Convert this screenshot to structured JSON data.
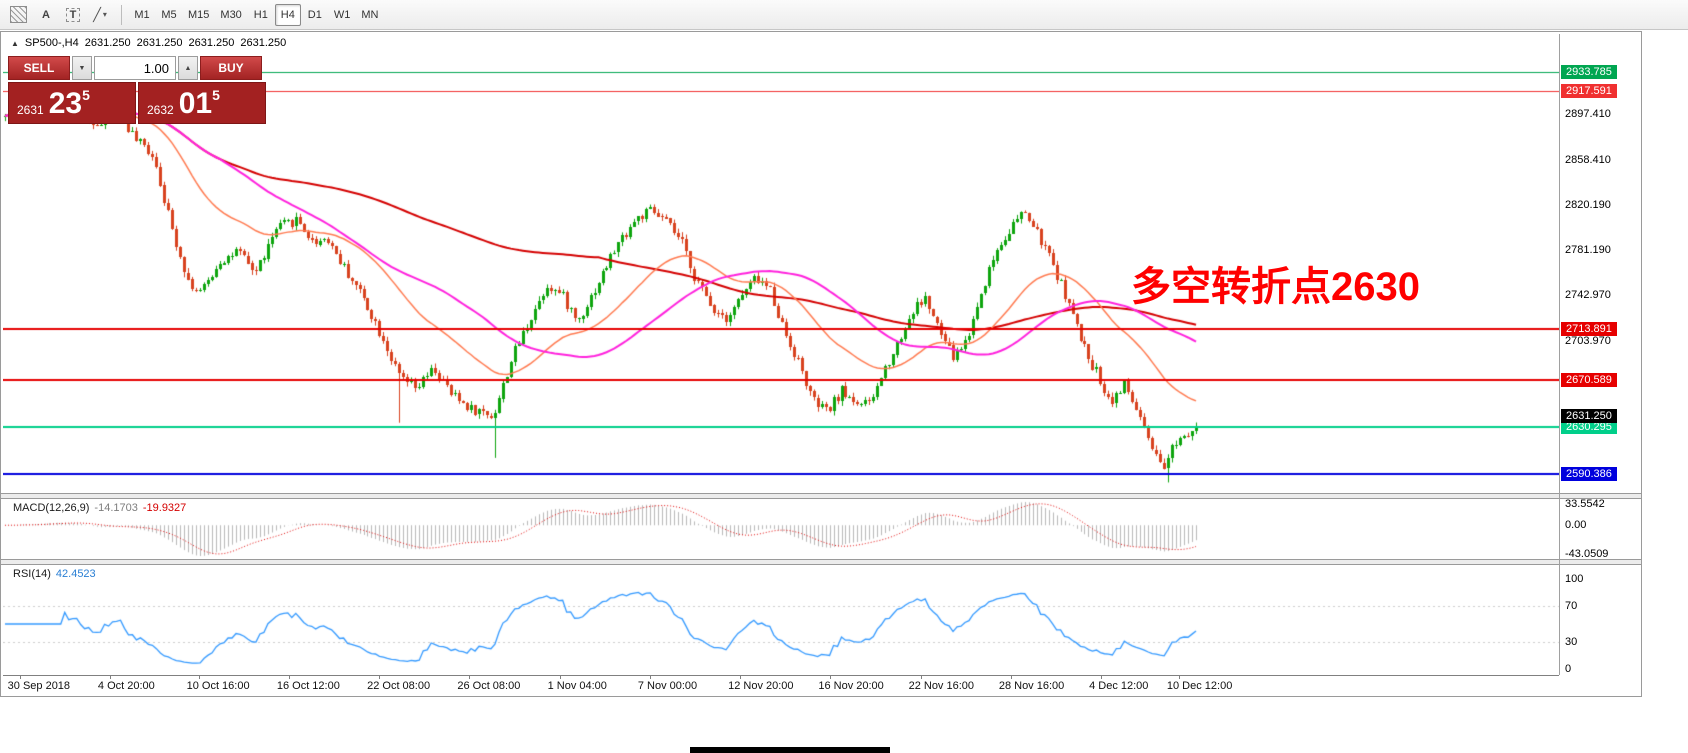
{
  "toolbar": {
    "icons": {
      "text_tool": "A",
      "label_tool": "T",
      "shapes_tool": "╱",
      "dropdown_caret": "▾"
    },
    "timeframes": [
      "M1",
      "M5",
      "M15",
      "M30",
      "H1",
      "H4",
      "D1",
      "W1",
      "MN"
    ],
    "active_timeframe": "H4"
  },
  "chart_header": {
    "marker": "▲",
    "symbol": "SP500-,H4",
    "open": "2631.250",
    "high": "2631.250",
    "low": "2631.250",
    "close": "2631.250"
  },
  "trade_panel": {
    "sell_label": "SELL",
    "buy_label": "BUY",
    "volume": "1.00",
    "down_caret": "▼",
    "up_caret": "▲",
    "sell_price_small": "2631",
    "sell_price_big": "23",
    "sell_price_sup": "5",
    "buy_price_small": "2632",
    "buy_price_big": "01",
    "buy_price_sup": "5"
  },
  "annotation": {
    "text": "多空转折点2630",
    "color": "#ff0000"
  },
  "macd": {
    "label": "MACD(12,26,9)",
    "main_value": "-14.1703",
    "signal_value": "-19.9327",
    "axis": [
      "33.5542",
      "0.00",
      "-43.0509"
    ]
  },
  "rsi": {
    "label": "RSI(14)",
    "value": "42.4523",
    "axis": [
      "100",
      "70",
      "30",
      "0"
    ]
  },
  "time_axis": {
    "labels": [
      "30 Sep 2018",
      "4 Oct 20:00",
      "10 Oct 16:00",
      "16 Oct 12:00",
      "22 Oct 08:00",
      "26 Oct 08:00",
      "1 Nov 04:00",
      "7 Nov 00:00",
      "12 Nov 20:00",
      "16 Nov 20:00",
      "22 Nov 16:00",
      "28 Nov 16:00",
      "4 Dec 12:00",
      "10 Dec 12:00"
    ],
    "fractions": [
      0.003,
      0.061,
      0.118,
      0.176,
      0.234,
      0.292,
      0.35,
      0.408,
      0.466,
      0.524,
      0.582,
      0.64,
      0.698,
      0.748
    ]
  },
  "chart_data": {
    "type": "candlestick",
    "symbol": "SP500",
    "timeframe": "H4",
    "price_range": [
      2574,
      2966
    ],
    "bars": 300,
    "seed": 42,
    "noise": 4.5,
    "wick": 4,
    "shift_fraction": 0.768,
    "last_close": 2631.25,
    "up_color": "#0ea50e",
    "down_color": "#d8421f",
    "waypoints": [
      [
        0.0,
        2895
      ],
      [
        0.02,
        2903
      ],
      [
        0.045,
        2910
      ],
      [
        0.065,
        2898
      ],
      [
        0.08,
        2888
      ],
      [
        0.095,
        2902
      ],
      [
        0.11,
        2875
      ],
      [
        0.125,
        2863
      ],
      [
        0.14,
        2800
      ],
      [
        0.155,
        2752
      ],
      [
        0.165,
        2745
      ],
      [
        0.18,
        2772
      ],
      [
        0.195,
        2780
      ],
      [
        0.21,
        2762
      ],
      [
        0.228,
        2800
      ],
      [
        0.245,
        2808
      ],
      [
        0.258,
        2788
      ],
      [
        0.27,
        2792
      ],
      [
        0.285,
        2765
      ],
      [
        0.3,
        2742
      ],
      [
        0.318,
        2705
      ],
      [
        0.33,
        2675
      ],
      [
        0.345,
        2662
      ],
      [
        0.36,
        2680
      ],
      [
        0.375,
        2658
      ],
      [
        0.393,
        2645
      ],
      [
        0.41,
        2640
      ],
      [
        0.425,
        2688
      ],
      [
        0.44,
        2722
      ],
      [
        0.455,
        2752
      ],
      [
        0.468,
        2742
      ],
      [
        0.48,
        2720
      ],
      [
        0.495,
        2748
      ],
      [
        0.512,
        2782
      ],
      [
        0.528,
        2806
      ],
      [
        0.542,
        2815
      ],
      [
        0.555,
        2806
      ],
      [
        0.568,
        2788
      ],
      [
        0.58,
        2756
      ],
      [
        0.594,
        2732
      ],
      [
        0.606,
        2724
      ],
      [
        0.618,
        2742
      ],
      [
        0.63,
        2758
      ],
      [
        0.642,
        2748
      ],
      [
        0.654,
        2712
      ],
      [
        0.666,
        2685
      ],
      [
        0.678,
        2652
      ],
      [
        0.69,
        2643
      ],
      [
        0.702,
        2661
      ],
      [
        0.714,
        2652
      ],
      [
        0.726,
        2649
      ],
      [
        0.738,
        2678
      ],
      [
        0.75,
        2703
      ],
      [
        0.762,
        2729
      ],
      [
        0.772,
        2741
      ],
      [
        0.784,
        2713
      ],
      [
        0.796,
        2690
      ],
      [
        0.808,
        2706
      ],
      [
        0.82,
        2747
      ],
      [
        0.832,
        2781
      ],
      [
        0.844,
        2801
      ],
      [
        0.856,
        2814
      ],
      [
        0.868,
        2792
      ],
      [
        0.88,
        2768
      ],
      [
        0.892,
        2738
      ],
      [
        0.904,
        2702
      ],
      [
        0.916,
        2678
      ],
      [
        0.928,
        2652
      ],
      [
        0.94,
        2666
      ],
      [
        0.952,
        2641
      ],
      [
        0.962,
        2612
      ],
      [
        0.972,
        2592
      ],
      [
        0.982,
        2618
      ],
      [
        1.0,
        2631.25
      ]
    ],
    "wick_events": [
      {
        "f": 0.33,
        "low": 2634
      },
      {
        "f": 0.41,
        "low": 2604
      },
      {
        "f": 0.978,
        "low": 2583
      },
      {
        "f": 0.05,
        "high": 2924
      }
    ],
    "mas": [
      {
        "name": "slow-ma",
        "type": "sma",
        "period": 150,
        "color": "#d40000",
        "width": 2
      },
      {
        "name": "mid-ma",
        "type": "ema",
        "period": 34,
        "color": "#ff7a50",
        "width": 1.5
      },
      {
        "name": "fast-ma",
        "type": "sma",
        "period": 55,
        "color": "#ff22dd",
        "width": 2
      }
    ],
    "h_lines": [
      {
        "price": 2933.785,
        "color": "#00a651",
        "width": 1,
        "label": "2933.785"
      },
      {
        "price": 2917.591,
        "color": "#f03030",
        "width": 1,
        "label": "2917.591"
      },
      {
        "price": 2713.891,
        "color": "#e60000",
        "width": 2,
        "label": "2713.891"
      },
      {
        "price": 2670.589,
        "color": "#e60000",
        "width": 2,
        "label": "2670.589"
      },
      {
        "price": 2630.295,
        "color": "#00cf8a",
        "width": 2,
        "label": "2630.295"
      },
      {
        "price": 2590.386,
        "color": "#0000dd",
        "width": 2,
        "label": "2590.386"
      }
    ],
    "plain_labels": [
      {
        "price": 2897.41,
        "text": "2897.410"
      },
      {
        "price": 2858.41,
        "text": "2858.410"
      },
      {
        "price": 2820.19,
        "text": "2820.190"
      },
      {
        "price": 2781.19,
        "text": "2781.190"
      },
      {
        "price": 2742.97,
        "text": "2742.970"
      },
      {
        "price": 2703.97,
        "text": "2703.970"
      }
    ],
    "current_price_box": {
      "text": "2631.250",
      "price": 2640,
      "bg": "#000000"
    },
    "macd_zero_frac": 0.438,
    "macd_hist_color": "#b8b8b8",
    "macd_signal_color": "#e00000",
    "rsi_color": "#3399ff",
    "rsi_pad_top": 14,
    "rsi_pad_bottom": 6
  }
}
